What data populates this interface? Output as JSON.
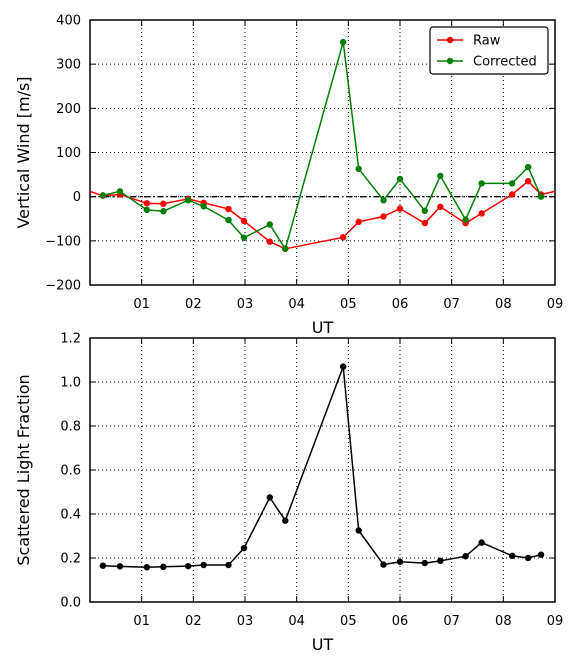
{
  "chart_data": [
    {
      "type": "line",
      "xlabel": "UT",
      "ylabel": "Vertical Wind [m/s]",
      "x_ticks": [
        "01",
        "02",
        "03",
        "04",
        "05",
        "06",
        "07",
        "08",
        "09"
      ],
      "xlim": [
        0,
        9
      ],
      "ylim": [
        -200,
        400
      ],
      "y_ticks": [
        -200,
        -100,
        0,
        100,
        200,
        300,
        400
      ],
      "y_tick_labels": [
        "−200",
        "−100",
        "0",
        "100",
        "200",
        "300",
        "400"
      ],
      "grid": true,
      "zero_line": true,
      "legend": "top-right",
      "series": [
        {
          "name": "Raw",
          "color": "#ff0000",
          "x": [
            0.0,
            0.25,
            0.58,
            1.1,
            1.42,
            1.9,
            2.2,
            2.68,
            2.98,
            3.48,
            3.78,
            4.9,
            5.2,
            5.68,
            6.0,
            6.48,
            6.78,
            7.27,
            7.58,
            8.17,
            8.48,
            8.73,
            9.0
          ],
          "y": [
            12,
            2,
            5,
            -15,
            -16,
            -5,
            -14,
            -28,
            -55,
            -102,
            -118,
            -92,
            -57,
            -45,
            -27,
            -60,
            -23,
            -60,
            -38,
            5,
            35,
            5,
            12
          ]
        },
        {
          "name": "Corrected",
          "color": "#008000",
          "x": [
            0.25,
            0.58,
            1.1,
            1.42,
            1.9,
            2.2,
            2.68,
            2.98,
            3.48,
            3.78,
            4.9,
            5.2,
            5.68,
            6.0,
            6.48,
            6.78,
            7.27,
            7.58,
            8.17,
            8.48,
            8.73
          ],
          "y": [
            3,
            12,
            -30,
            -33,
            -8,
            -22,
            -53,
            -93,
            -63,
            -118,
            350,
            63,
            -8,
            40,
            -32,
            47,
            -52,
            30,
            30,
            67,
            0
          ]
        }
      ]
    },
    {
      "type": "line",
      "xlabel": "UT",
      "ylabel": "Scattered Light Fraction",
      "x_ticks": [
        "01",
        "02",
        "03",
        "04",
        "05",
        "06",
        "07",
        "08",
        "09"
      ],
      "xlim": [
        0,
        9
      ],
      "ylim": [
        0,
        1.2
      ],
      "y_ticks": [
        0,
        0.2,
        0.4,
        0.6,
        0.8,
        1.0,
        1.2
      ],
      "y_tick_labels": [
        "0.0",
        "0.2",
        "0.4",
        "0.6",
        "0.8",
        "1.0",
        "1.2"
      ],
      "grid": true,
      "series": [
        {
          "color": "#000000",
          "x": [
            0.25,
            0.58,
            1.1,
            1.42,
            1.9,
            2.2,
            2.68,
            2.98,
            3.48,
            3.78,
            4.9,
            5.2,
            5.68,
            6.0,
            6.48,
            6.78,
            7.27,
            7.58,
            8.17,
            8.48,
            8.73
          ],
          "y": [
            0.165,
            0.162,
            0.158,
            0.16,
            0.163,
            0.168,
            0.168,
            0.245,
            0.475,
            0.37,
            1.07,
            0.325,
            0.17,
            0.183,
            0.177,
            0.187,
            0.208,
            0.27,
            0.21,
            0.2,
            0.215
          ]
        }
      ]
    }
  ]
}
